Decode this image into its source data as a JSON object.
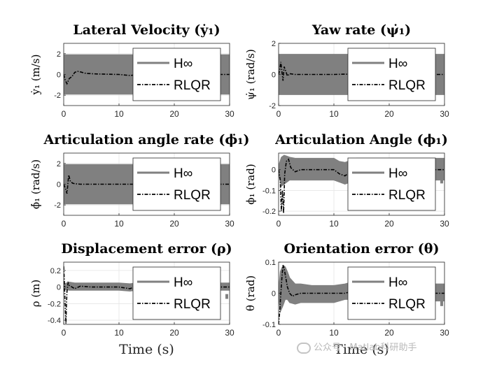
{
  "chart_data": [
    {
      "type": "line",
      "title": "Lateral Velocity (ẏ₁)",
      "ylabel": "ẏ₁ (m/s)",
      "xlabel": "",
      "xlim": [
        0,
        30
      ],
      "ylim": [
        -3,
        3
      ],
      "xticks": [
        "0",
        "10",
        "20",
        "30"
      ],
      "yticks": [
        "-2",
        "0",
        "2"
      ],
      "yticks_values": [
        -2,
        0,
        2
      ],
      "grid": true,
      "legend_position": "right",
      "series": [
        {
          "name": "H∞",
          "style": "band",
          "color": "#808080",
          "x": [
            0,
            30
          ],
          "lower": [
            -1.9,
            -1.9
          ],
          "upper": [
            1.9,
            1.9
          ]
        },
        {
          "name": "RLQR",
          "style": "dash-dot",
          "color": "#000000",
          "x": [
            0,
            0.3,
            0.6,
            1.0,
            1.5,
            2.0,
            2.5,
            3.0,
            4.0,
            6.0,
            8.0,
            10.0,
            12.0,
            13.0,
            15.0,
            20.0,
            25.0,
            30.0
          ],
          "y": [
            0,
            -0.6,
            -0.9,
            -0.4,
            -0.2,
            0.2,
            0.3,
            0.25,
            0.1,
            0.05,
            0.02,
            0.0,
            -0.1,
            -0.05,
            0.0,
            0.0,
            0.0,
            0.0
          ]
        }
      ]
    },
    {
      "type": "line",
      "title": "Yaw rate (ψ̇₁)",
      "ylabel": "ψ̇₁ (rad/s)",
      "xlabel": "",
      "xlim": [
        0,
        30
      ],
      "ylim": [
        -2,
        2
      ],
      "xticks": [
        "0",
        "10",
        "20",
        "30"
      ],
      "yticks": [
        "-2",
        "0",
        "2"
      ],
      "yticks_values": [
        -2,
        0,
        2
      ],
      "grid": true,
      "legend_position": "right",
      "series": [
        {
          "name": "H∞",
          "style": "band",
          "color": "#808080",
          "x": [
            0,
            30
          ],
          "lower": [
            -1.3,
            -1.3
          ],
          "upper": [
            1.3,
            1.3
          ]
        },
        {
          "name": "RLQR",
          "style": "dash-dot",
          "color": "#000000",
          "x": [
            0,
            0.2,
            0.4,
            0.6,
            0.8,
            1.0,
            1.3,
            1.6,
            2.0,
            3.0,
            5.0,
            10.0,
            12.0,
            15.0,
            20.0,
            30.0
          ],
          "y": [
            0,
            0.3,
            0.8,
            0.2,
            -0.4,
            0.5,
            0.2,
            -0.1,
            0.05,
            0.0,
            0.0,
            0.0,
            0.02,
            0.0,
            0.0,
            0.0
          ]
        }
      ]
    },
    {
      "type": "line",
      "title": "Articulation angle rate (ϕ̇₁)",
      "ylabel": "ϕ̇₁ (rad/s)",
      "xlabel": "",
      "xlim": [
        0,
        30
      ],
      "ylim": [
        -3,
        3
      ],
      "xticks": [
        "0",
        "10",
        "20",
        "30"
      ],
      "yticks": [
        "-2",
        "0",
        "2"
      ],
      "yticks_values": [
        -2,
        0,
        2
      ],
      "grid": true,
      "legend_position": "right",
      "series": [
        {
          "name": "H∞",
          "style": "band",
          "color": "#808080",
          "x": [
            0,
            30
          ],
          "lower": [
            -1.9,
            -1.9
          ],
          "upper": [
            1.9,
            1.9
          ]
        },
        {
          "name": "RLQR",
          "style": "dash-dot",
          "color": "#000000",
          "x": [
            0,
            0.3,
            0.6,
            0.9,
            1.2,
            1.6,
            2.0,
            3.0,
            5.0,
            10.0,
            15.0,
            20.0,
            30.0
          ],
          "y": [
            0,
            -0.4,
            -0.9,
            0.9,
            0.3,
            0.1,
            0.05,
            0.0,
            0.0,
            0.0,
            0.0,
            0.0,
            0.0
          ]
        }
      ]
    },
    {
      "type": "line",
      "title": "Articulation Angle (ϕ₁)",
      "ylabel": "ϕ₁ (rad)",
      "xlabel": "",
      "xlim": [
        0,
        30
      ],
      "ylim": [
        -0.22,
        0.08
      ],
      "xticks": [
        "0",
        "10",
        "20",
        "30"
      ],
      "yticks": [
        "-0.2",
        "-0.1",
        "0"
      ],
      "yticks_values": [
        -0.2,
        -0.1,
        0
      ],
      "grid": true,
      "legend_position": "right",
      "series": [
        {
          "name": "H∞",
          "style": "band",
          "color": "#808080",
          "x": [
            0,
            0.5,
            1.0,
            1.5,
            2.0,
            3.0,
            5.0,
            8.0,
            10.0,
            11.0,
            12.0,
            13.0,
            14.0,
            16.0,
            20.0,
            25.0,
            30.0
          ],
          "lower": [
            -0.02,
            -0.08,
            -0.07,
            -0.06,
            -0.05,
            -0.05,
            -0.05,
            -0.05,
            -0.05,
            -0.06,
            -0.07,
            -0.06,
            -0.05,
            -0.05,
            -0.05,
            -0.05,
            -0.05
          ],
          "upper": [
            0.02,
            0.06,
            0.07,
            0.065,
            0.06,
            0.055,
            0.055,
            0.055,
            0.055,
            0.04,
            0.035,
            0.045,
            0.055,
            0.055,
            0.055,
            0.055,
            0.055
          ]
        },
        {
          "name": "RLQR",
          "style": "dash-dot",
          "color": "#000000",
          "x": [
            0,
            0.3,
            0.5,
            0.7,
            0.9,
            1.1,
            1.4,
            1.8,
            2.2,
            3.0,
            4.0,
            6.0,
            10.0,
            11.0,
            12.0,
            13.0,
            15.0,
            20.0,
            30.0
          ],
          "y": [
            0,
            -0.05,
            -0.2,
            -0.1,
            -0.21,
            -0.02,
            0.04,
            0.05,
            0.01,
            -0.01,
            0.0,
            0.0,
            0.0,
            -0.02,
            -0.03,
            -0.01,
            0.0,
            0.0,
            0.0
          ]
        }
      ]
    },
    {
      "type": "line",
      "title": "Displacement error (ρ)",
      "ylabel": "ρ (m)",
      "xlabel": "Time (s)",
      "xlim": [
        0,
        30
      ],
      "ylim": [
        -0.45,
        0.3
      ],
      "xticks": [
        "0",
        "10",
        "20",
        "30"
      ],
      "yticks": [
        "-0.4",
        "-0.2",
        "0",
        "0.2"
      ],
      "yticks_values": [
        -0.4,
        -0.2,
        0,
        0.2
      ],
      "grid": true,
      "legend_position": "right",
      "series": [
        {
          "name": "H∞",
          "style": "band",
          "color": "#808080",
          "x": [
            0,
            0.5,
            1.0,
            2.0,
            3.0,
            6.0,
            10.0,
            12.0,
            13.0,
            14.0,
            30.0
          ],
          "lower": [
            -0.03,
            -0.03,
            -0.04,
            -0.04,
            -0.04,
            -0.04,
            -0.04,
            -0.05,
            -0.04,
            -0.04,
            -0.04
          ],
          "upper": [
            0.03,
            0.05,
            0.06,
            0.05,
            0.05,
            0.05,
            0.05,
            0.04,
            0.05,
            0.05,
            0.05
          ]
        },
        {
          "name": "RLQR",
          "style": "dash-dot",
          "color": "#000000",
          "x": [
            0,
            0.1,
            0.2,
            0.3,
            0.4,
            0.5,
            0.6,
            0.8,
            1.0,
            1.5,
            2.0,
            3.0,
            5.0,
            10.0,
            12.0,
            13.0,
            15.0,
            30.0
          ],
          "y": [
            0.25,
            0.1,
            -0.1,
            -0.3,
            -0.44,
            -0.2,
            -0.05,
            0.05,
            0.02,
            0.0,
            -0.02,
            0.01,
            0.0,
            0.0,
            -0.02,
            0.01,
            0.0,
            0.0
          ]
        }
      ]
    },
    {
      "type": "line",
      "title": "Orientation error (θ)",
      "ylabel": "θ (rad)",
      "xlabel": "Time (s)",
      "xlim": [
        0,
        30
      ],
      "ylim": [
        -0.1,
        0.1
      ],
      "xticks": [
        "0",
        "10",
        "20",
        "30"
      ],
      "yticks": [
        "-0.1",
        "0",
        "0.1"
      ],
      "yticks_values": [
        -0.1,
        0,
        0.1
      ],
      "grid": true,
      "legend_position": "right",
      "series": [
        {
          "name": "H∞",
          "style": "band",
          "color": "#808080",
          "x": [
            0,
            0.3,
            0.8,
            1.2,
            1.6,
            2.0,
            3.0,
            4.0,
            6.0,
            10.0,
            12.0,
            13.0,
            14.0,
            30.0
          ],
          "lower": [
            -0.01,
            -0.06,
            -0.04,
            -0.02,
            -0.02,
            -0.03,
            -0.035,
            -0.03,
            -0.03,
            -0.03,
            -0.02,
            -0.02,
            -0.025,
            -0.025
          ],
          "upper": [
            0.01,
            0.07,
            0.09,
            0.085,
            0.07,
            0.05,
            0.03,
            0.03,
            0.025,
            0.025,
            0.03,
            0.035,
            0.03,
            0.03
          ]
        },
        {
          "name": "RLQR",
          "style": "dash-dot",
          "color": "#000000",
          "x": [
            0,
            0.2,
            0.4,
            0.6,
            0.8,
            1.0,
            1.3,
            1.6,
            2.0,
            2.5,
            3.0,
            4.0,
            5.0,
            8.0,
            10.0,
            12.0,
            13.0,
            15.0,
            30.0
          ],
          "y": [
            -0.1,
            -0.06,
            0.0,
            0.05,
            0.09,
            0.08,
            0.05,
            0.02,
            0.0,
            -0.01,
            -0.005,
            0.0,
            0.0,
            0.0,
            0.0,
            0.0,
            0.005,
            0.0,
            0.0
          ]
        }
      ]
    }
  ],
  "watermark": "公众号 · Matlab科研助手"
}
